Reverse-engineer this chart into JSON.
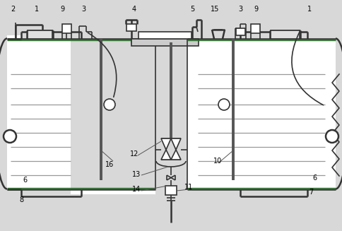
{
  "bg_color": "#d8d8d8",
  "line_color": "#333333",
  "green_color": "#2d7a2d",
  "dark_color": "#555555",
  "gray_line": "#999999",
  "white": "#ffffff",
  "lw_main": 1.2,
  "lw_thick": 1.8,
  "lw_rod": 2.8,
  "lw_gray": 0.9
}
